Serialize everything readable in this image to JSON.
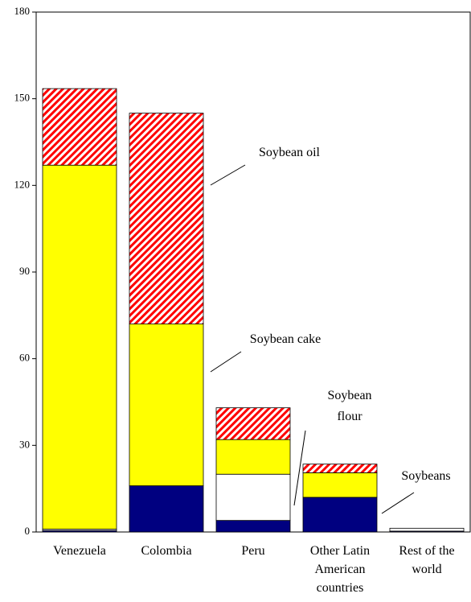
{
  "chart_data": {
    "type": "stacked-bar",
    "categories": [
      "Venezuela",
      "Colombia",
      "Peru",
      "Other Latin American countries",
      "Rest of the world"
    ],
    "series": [
      {
        "name": "Soybeans",
        "color": "#000080",
        "values": [
          0.5,
          16,
          4,
          12,
          0.3
        ]
      },
      {
        "name": "Soybean flour",
        "color": "#ffffff",
        "values": [
          0.5,
          0,
          16,
          0,
          1
        ]
      },
      {
        "name": "Soybean cake",
        "color": "#ffff00",
        "values": [
          126,
          56,
          12,
          8.5,
          0
        ]
      },
      {
        "name": "Soybean oil",
        "color": "#ff0000",
        "values": [
          26.5,
          73,
          11,
          3,
          0
        ],
        "hatch": true
      }
    ],
    "ylim": [
      0,
      180
    ],
    "yticks": [
      0,
      30,
      60,
      90,
      120,
      150,
      180
    ]
  }
}
